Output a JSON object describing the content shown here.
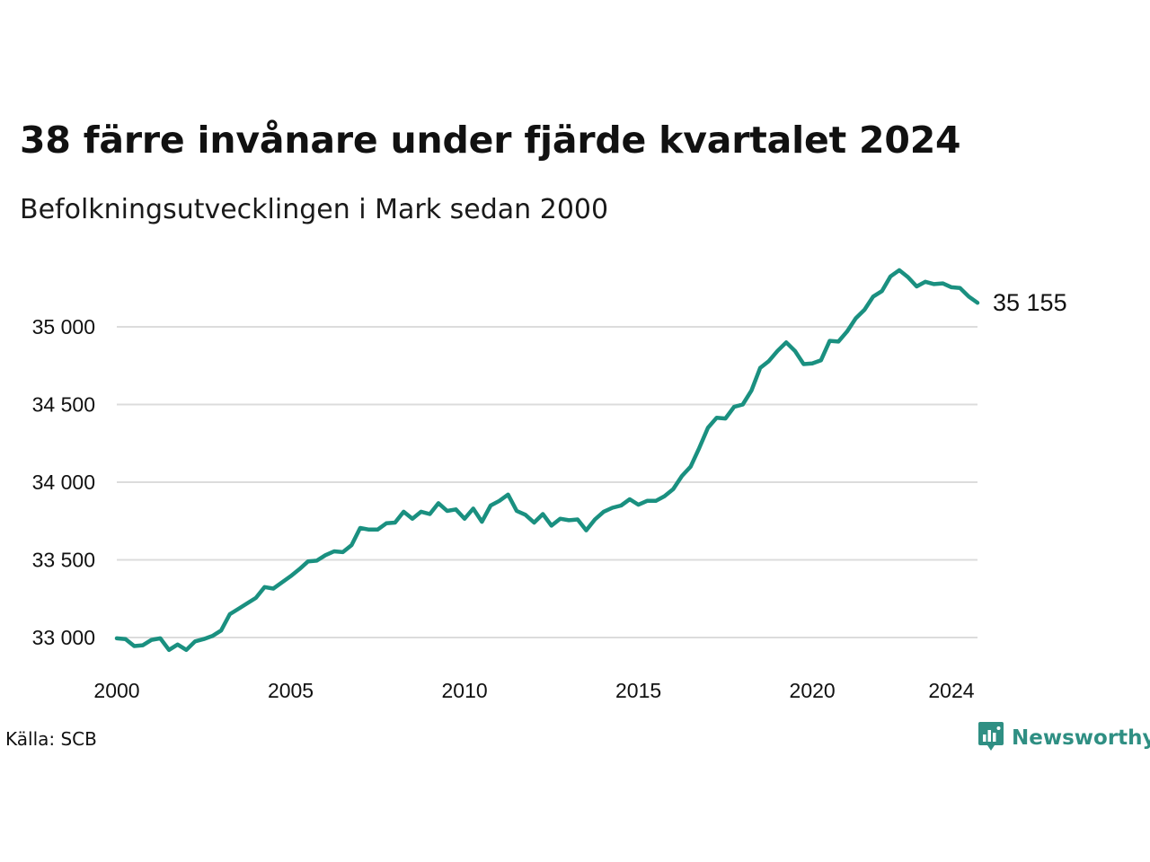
{
  "title": "38 färre invånare under fjärde kvartalet 2024",
  "subtitle": "Befolkningsutvecklingen i Mark sedan 2000",
  "source": "Källa: SCB",
  "brand": {
    "name": "Newsworthy",
    "icon": "newsworthy-logo-icon",
    "color": "#2f8f83"
  },
  "colors": {
    "line": "#1a9080",
    "grid": "#dcdcdc"
  },
  "chart_data": {
    "type": "line",
    "title": "38 färre invånare under fjärde kvartalet 2024",
    "subtitle": "Befolkningsutvecklingen i Mark sedan 2000",
    "xlabel": "",
    "ylabel": "",
    "xlim": [
      2000,
      2025
    ],
    "ylim": [
      32800,
      35400
    ],
    "grid": "horizontal",
    "y_ticks": [
      33000,
      33500,
      34000,
      34500,
      35000
    ],
    "y_tick_labels": [
      "33 000",
      "33 500",
      "34 000",
      "34 500",
      "35 000"
    ],
    "x_ticks": [
      2000,
      2005,
      2010,
      2015,
      2020,
      2024
    ],
    "x_tick_labels": [
      "2000",
      "2005",
      "2010",
      "2015",
      "2020",
      "2024"
    ],
    "end_label": "35 155",
    "series": [
      {
        "x": [
          2000.0,
          2000.25,
          2000.5,
          2000.75,
          2001.0,
          2001.25,
          2001.5,
          2001.75,
          2002.0,
          2002.25,
          2002.5,
          2002.75,
          2003.0,
          2003.25,
          2003.5,
          2003.75,
          2004.0,
          2004.25,
          2004.5,
          2004.75,
          2005.0,
          2005.25,
          2005.5,
          2005.75,
          2006.0,
          2006.25,
          2006.5,
          2006.75,
          2007.0,
          2007.25,
          2007.5,
          2007.75,
          2008.0,
          2008.25,
          2008.5,
          2008.75,
          2009.0,
          2009.25,
          2009.5,
          2009.75,
          2010.0,
          2010.25,
          2010.5,
          2010.75,
          2011.0,
          2011.25,
          2011.5,
          2011.75,
          2012.0,
          2012.25,
          2012.5,
          2012.75,
          2013.0,
          2013.25,
          2013.5,
          2013.75,
          2014.0,
          2014.25,
          2014.5,
          2014.75,
          2015.0,
          2015.25,
          2015.5,
          2015.75,
          2016.0,
          2016.25,
          2016.5,
          2016.75,
          2017.0,
          2017.25,
          2017.5,
          2017.75,
          2018.0,
          2018.25,
          2018.5,
          2018.75,
          2019.0,
          2019.25,
          2019.5,
          2019.75,
          2020.0,
          2020.25,
          2020.5,
          2020.75,
          2021.0,
          2021.25,
          2021.5,
          2021.75,
          2022.0,
          2022.25,
          2022.5,
          2022.75,
          2023.0,
          2023.25,
          2023.5,
          2023.75,
          2024.0,
          2024.25,
          2024.5,
          2024.75
        ],
        "values": [
          32995,
          32990,
          32945,
          32950,
          32985,
          32995,
          32920,
          32955,
          32920,
          32975,
          32990,
          33010,
          33045,
          33150,
          33185,
          33220,
          33255,
          33325,
          33315,
          33355,
          33395,
          33440,
          33490,
          33495,
          33530,
          33555,
          33550,
          33595,
          33705,
          33695,
          33695,
          33735,
          33740,
          33810,
          33765,
          33810,
          33795,
          33865,
          33815,
          33825,
          33765,
          33830,
          33745,
          33850,
          33880,
          33920,
          33815,
          33790,
          33740,
          33795,
          33720,
          33765,
          33755,
          33760,
          33690,
          33760,
          33810,
          33835,
          33850,
          33890,
          33855,
          33880,
          33880,
          33910,
          33955,
          34040,
          34100,
          34220,
          34350,
          34415,
          34410,
          34485,
          34500,
          34590,
          34735,
          34780,
          34845,
          34900,
          34845,
          34760,
          34765,
          34785,
          34910,
          34905,
          34970,
          35055,
          35110,
          35195,
          35230,
          35325,
          35365,
          35320,
          35260,
          35290,
          35275,
          35280,
          35255,
          35250,
          35195,
          35155
        ]
      }
    ]
  }
}
